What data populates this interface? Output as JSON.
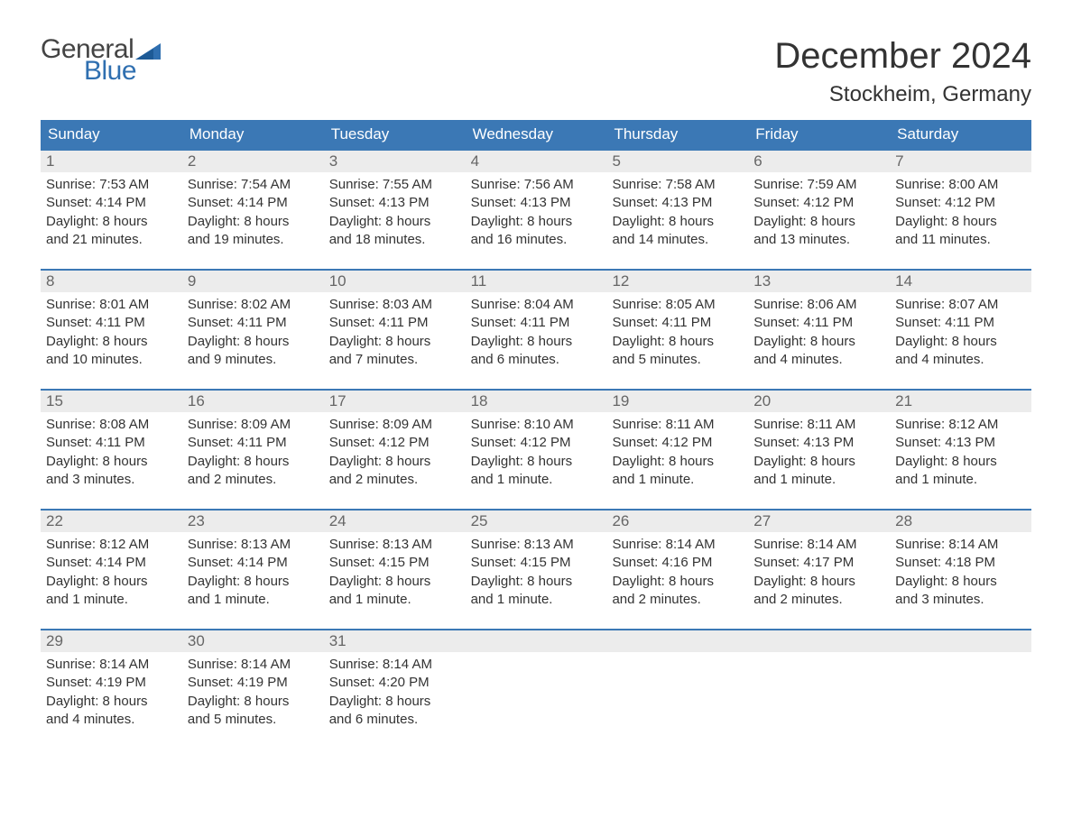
{
  "logo": {
    "line1": "General",
    "line2": "Blue"
  },
  "title": "December 2024",
  "location": "Stockheim, Germany",
  "colors": {
    "header_bg": "#3b78b5",
    "header_text": "#ffffff",
    "daynum_bg": "#ececec",
    "daynum_text": "#666666",
    "body_text": "#333333",
    "logo_gray": "#444444",
    "logo_blue": "#2f6fb0",
    "divider": "#3b78b5",
    "background": "#ffffff"
  },
  "weekdays": [
    "Sunday",
    "Monday",
    "Tuesday",
    "Wednesday",
    "Thursday",
    "Friday",
    "Saturday"
  ],
  "days": [
    {
      "n": "1",
      "sunrise": "Sunrise: 7:53 AM",
      "sunset": "Sunset: 4:14 PM",
      "dl1": "Daylight: 8 hours",
      "dl2": "and 21 minutes."
    },
    {
      "n": "2",
      "sunrise": "Sunrise: 7:54 AM",
      "sunset": "Sunset: 4:14 PM",
      "dl1": "Daylight: 8 hours",
      "dl2": "and 19 minutes."
    },
    {
      "n": "3",
      "sunrise": "Sunrise: 7:55 AM",
      "sunset": "Sunset: 4:13 PM",
      "dl1": "Daylight: 8 hours",
      "dl2": "and 18 minutes."
    },
    {
      "n": "4",
      "sunrise": "Sunrise: 7:56 AM",
      "sunset": "Sunset: 4:13 PM",
      "dl1": "Daylight: 8 hours",
      "dl2": "and 16 minutes."
    },
    {
      "n": "5",
      "sunrise": "Sunrise: 7:58 AM",
      "sunset": "Sunset: 4:13 PM",
      "dl1": "Daylight: 8 hours",
      "dl2": "and 14 minutes."
    },
    {
      "n": "6",
      "sunrise": "Sunrise: 7:59 AM",
      "sunset": "Sunset: 4:12 PM",
      "dl1": "Daylight: 8 hours",
      "dl2": "and 13 minutes."
    },
    {
      "n": "7",
      "sunrise": "Sunrise: 8:00 AM",
      "sunset": "Sunset: 4:12 PM",
      "dl1": "Daylight: 8 hours",
      "dl2": "and 11 minutes."
    },
    {
      "n": "8",
      "sunrise": "Sunrise: 8:01 AM",
      "sunset": "Sunset: 4:11 PM",
      "dl1": "Daylight: 8 hours",
      "dl2": "and 10 minutes."
    },
    {
      "n": "9",
      "sunrise": "Sunrise: 8:02 AM",
      "sunset": "Sunset: 4:11 PM",
      "dl1": "Daylight: 8 hours",
      "dl2": "and 9 minutes."
    },
    {
      "n": "10",
      "sunrise": "Sunrise: 8:03 AM",
      "sunset": "Sunset: 4:11 PM",
      "dl1": "Daylight: 8 hours",
      "dl2": "and 7 minutes."
    },
    {
      "n": "11",
      "sunrise": "Sunrise: 8:04 AM",
      "sunset": "Sunset: 4:11 PM",
      "dl1": "Daylight: 8 hours",
      "dl2": "and 6 minutes."
    },
    {
      "n": "12",
      "sunrise": "Sunrise: 8:05 AM",
      "sunset": "Sunset: 4:11 PM",
      "dl1": "Daylight: 8 hours",
      "dl2": "and 5 minutes."
    },
    {
      "n": "13",
      "sunrise": "Sunrise: 8:06 AM",
      "sunset": "Sunset: 4:11 PM",
      "dl1": "Daylight: 8 hours",
      "dl2": "and 4 minutes."
    },
    {
      "n": "14",
      "sunrise": "Sunrise: 8:07 AM",
      "sunset": "Sunset: 4:11 PM",
      "dl1": "Daylight: 8 hours",
      "dl2": "and 4 minutes."
    },
    {
      "n": "15",
      "sunrise": "Sunrise: 8:08 AM",
      "sunset": "Sunset: 4:11 PM",
      "dl1": "Daylight: 8 hours",
      "dl2": "and 3 minutes."
    },
    {
      "n": "16",
      "sunrise": "Sunrise: 8:09 AM",
      "sunset": "Sunset: 4:11 PM",
      "dl1": "Daylight: 8 hours",
      "dl2": "and 2 minutes."
    },
    {
      "n": "17",
      "sunrise": "Sunrise: 8:09 AM",
      "sunset": "Sunset: 4:12 PM",
      "dl1": "Daylight: 8 hours",
      "dl2": "and 2 minutes."
    },
    {
      "n": "18",
      "sunrise": "Sunrise: 8:10 AM",
      "sunset": "Sunset: 4:12 PM",
      "dl1": "Daylight: 8 hours",
      "dl2": "and 1 minute."
    },
    {
      "n": "19",
      "sunrise": "Sunrise: 8:11 AM",
      "sunset": "Sunset: 4:12 PM",
      "dl1": "Daylight: 8 hours",
      "dl2": "and 1 minute."
    },
    {
      "n": "20",
      "sunrise": "Sunrise: 8:11 AM",
      "sunset": "Sunset: 4:13 PM",
      "dl1": "Daylight: 8 hours",
      "dl2": "and 1 minute."
    },
    {
      "n": "21",
      "sunrise": "Sunrise: 8:12 AM",
      "sunset": "Sunset: 4:13 PM",
      "dl1": "Daylight: 8 hours",
      "dl2": "and 1 minute."
    },
    {
      "n": "22",
      "sunrise": "Sunrise: 8:12 AM",
      "sunset": "Sunset: 4:14 PM",
      "dl1": "Daylight: 8 hours",
      "dl2": "and 1 minute."
    },
    {
      "n": "23",
      "sunrise": "Sunrise: 8:13 AM",
      "sunset": "Sunset: 4:14 PM",
      "dl1": "Daylight: 8 hours",
      "dl2": "and 1 minute."
    },
    {
      "n": "24",
      "sunrise": "Sunrise: 8:13 AM",
      "sunset": "Sunset: 4:15 PM",
      "dl1": "Daylight: 8 hours",
      "dl2": "and 1 minute."
    },
    {
      "n": "25",
      "sunrise": "Sunrise: 8:13 AM",
      "sunset": "Sunset: 4:15 PM",
      "dl1": "Daylight: 8 hours",
      "dl2": "and 1 minute."
    },
    {
      "n": "26",
      "sunrise": "Sunrise: 8:14 AM",
      "sunset": "Sunset: 4:16 PM",
      "dl1": "Daylight: 8 hours",
      "dl2": "and 2 minutes."
    },
    {
      "n": "27",
      "sunrise": "Sunrise: 8:14 AM",
      "sunset": "Sunset: 4:17 PM",
      "dl1": "Daylight: 8 hours",
      "dl2": "and 2 minutes."
    },
    {
      "n": "28",
      "sunrise": "Sunrise: 8:14 AM",
      "sunset": "Sunset: 4:18 PM",
      "dl1": "Daylight: 8 hours",
      "dl2": "and 3 minutes."
    },
    {
      "n": "29",
      "sunrise": "Sunrise: 8:14 AM",
      "sunset": "Sunset: 4:19 PM",
      "dl1": "Daylight: 8 hours",
      "dl2": "and 4 minutes."
    },
    {
      "n": "30",
      "sunrise": "Sunrise: 8:14 AM",
      "sunset": "Sunset: 4:19 PM",
      "dl1": "Daylight: 8 hours",
      "dl2": "and 5 minutes."
    },
    {
      "n": "31",
      "sunrise": "Sunrise: 8:14 AM",
      "sunset": "Sunset: 4:20 PM",
      "dl1": "Daylight: 8 hours",
      "dl2": "and 6 minutes."
    }
  ],
  "layout": {
    "weeks": 5,
    "start_weekday_index": 0,
    "trailing_empty": 4
  }
}
